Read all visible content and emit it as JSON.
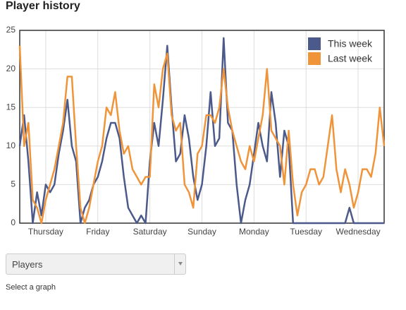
{
  "header": {
    "title": "Player history"
  },
  "chart_data": {
    "type": "line",
    "x": [
      0,
      2,
      4,
      6,
      8,
      10,
      12,
      14,
      16,
      18,
      20,
      22,
      24,
      26,
      28,
      30,
      32,
      34,
      36,
      38,
      40,
      42,
      44,
      46,
      48,
      50,
      52,
      54,
      56,
      58,
      60,
      62,
      64,
      66,
      68,
      70,
      72,
      74,
      76,
      78,
      80,
      82,
      84,
      86,
      88,
      90,
      92,
      94,
      96,
      98,
      100,
      102,
      104,
      106,
      108,
      110,
      112,
      114,
      116,
      118,
      120,
      122,
      124,
      126,
      128,
      130,
      132,
      134,
      136,
      138,
      140,
      142,
      144,
      146,
      148,
      150,
      152,
      154,
      156,
      158,
      160,
      162,
      164,
      166,
      168
    ],
    "xlim": [
      0,
      168
    ],
    "xticks": [
      {
        "value": 12,
        "label": "Thursday"
      },
      {
        "value": 36,
        "label": "Friday"
      },
      {
        "value": 60,
        "label": "Saturday"
      },
      {
        "value": 84,
        "label": "Sunday"
      },
      {
        "value": 108,
        "label": "Monday"
      },
      {
        "value": 132,
        "label": "Tuesday"
      },
      {
        "value": 156,
        "label": "Wednesday"
      }
    ],
    "ylim": [
      0,
      25
    ],
    "yticks": [
      0,
      5,
      10,
      15,
      20,
      25
    ],
    "grid": true,
    "legend": "top-right",
    "series": [
      {
        "name": "This week",
        "color": "#4b5a8b",
        "values": [
          10,
          14,
          8,
          0,
          4,
          1,
          5,
          4,
          5,
          9,
          12,
          16,
          10,
          8,
          0,
          2,
          3,
          5,
          6,
          8,
          11,
          13,
          13,
          11,
          6,
          2,
          1,
          0,
          1,
          0,
          8,
          13,
          10,
          16,
          23,
          15,
          8,
          9,
          14,
          11,
          6,
          3,
          5,
          10,
          17,
          10,
          11,
          24,
          13,
          12,
          5,
          0,
          3,
          5,
          9,
          13,
          10,
          8,
          17,
          13,
          6,
          12,
          10,
          0,
          0,
          0,
          0,
          0,
          0,
          0,
          0,
          0,
          0,
          0,
          0,
          0,
          2,
          0,
          0,
          0,
          0,
          0,
          0,
          0,
          0
        ]
      },
      {
        "name": "Last week",
        "color": "#f0943a",
        "values": [
          23,
          10,
          13,
          3,
          2,
          0,
          3,
          5,
          7,
          10,
          13,
          19,
          19,
          10,
          2,
          0,
          2,
          5,
          8,
          10,
          15,
          14,
          17,
          12,
          9,
          10,
          7,
          6,
          5,
          6,
          6,
          18,
          15,
          20,
          22,
          14,
          12,
          13,
          5,
          4,
          2,
          9,
          10,
          14,
          14,
          13,
          15,
          20,
          15,
          12,
          10,
          8,
          7,
          10,
          8,
          11,
          14,
          20,
          12,
          11,
          10,
          5,
          12,
          5,
          1,
          4,
          5,
          7,
          7,
          5,
          6,
          10,
          14,
          7,
          4,
          7,
          5,
          2,
          4,
          7,
          7,
          6,
          9,
          15,
          10
        ]
      }
    ]
  },
  "dropdown": {
    "value": "Players",
    "caption": "Select a graph"
  }
}
